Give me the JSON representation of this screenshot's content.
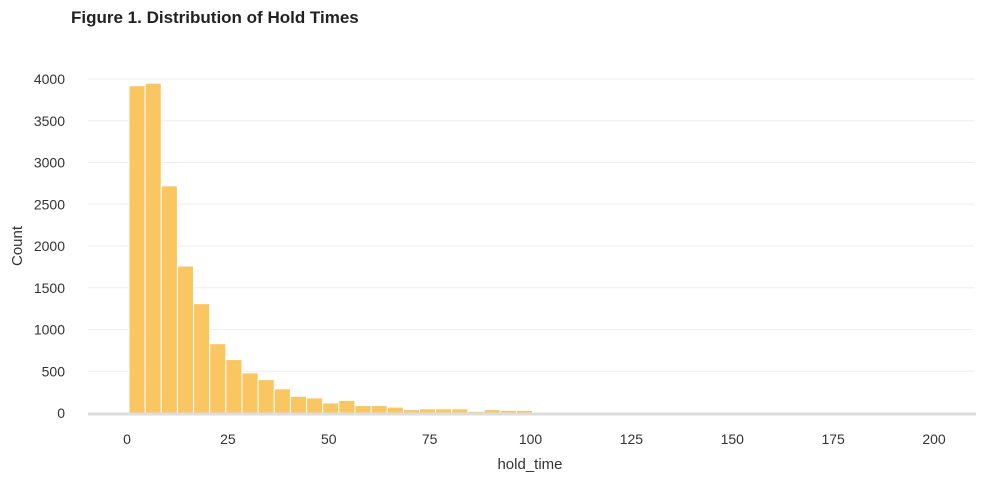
{
  "chart_data": {
    "type": "bar",
    "title": "Figure 1. Distribution of Hold Times",
    "xlabel": "hold_time",
    "ylabel": "Count",
    "xlim": [
      -9.5,
      210
    ],
    "ylim": [
      0,
      4000
    ],
    "x_ticks": [
      0,
      25,
      50,
      75,
      100,
      125,
      150,
      175,
      200
    ],
    "y_ticks": [
      0,
      500,
      1000,
      1500,
      2000,
      2500,
      3000,
      3500,
      4000
    ],
    "bin_width": 4,
    "bin_start": 0.5,
    "values": [
      3920,
      3950,
      2720,
      1760,
      1310,
      830,
      640,
      480,
      400,
      290,
      200,
      180,
      120,
      150,
      90,
      90,
      70,
      40,
      50,
      50,
      50,
      20,
      40,
      30,
      30,
      10,
      10,
      10,
      10,
      10,
      5,
      5,
      5,
      5,
      5,
      5,
      5,
      5,
      5,
      5,
      5,
      5,
      5,
      5,
      5,
      5,
      5,
      5,
      5,
      5
    ],
    "grid": true,
    "bar_color": "#FAC661",
    "grid_color": "#EEEEEE",
    "baseline_color": "#DDDDDD"
  }
}
